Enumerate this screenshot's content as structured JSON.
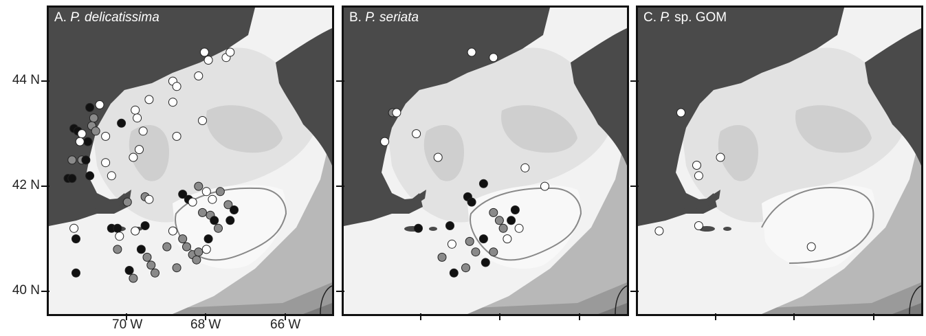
{
  "panels": [
    {
      "id": "A",
      "title_prefix": "A.",
      "title_italic": "P. delicatissima",
      "title_suffix": "",
      "stations": [
        {
          "lon": -70.05,
          "lat": 43.55,
          "type": "black"
        },
        {
          "lon": -69.95,
          "lat": 43.35,
          "type": "gray"
        },
        {
          "lon": -70.0,
          "lat": 43.2,
          "type": "gray"
        },
        {
          "lon": -69.9,
          "lat": 43.1,
          "type": "gray"
        },
        {
          "lon": -70.1,
          "lat": 42.9,
          "type": "black"
        },
        {
          "lon": -70.45,
          "lat": 43.15,
          "type": "black"
        },
        {
          "lon": -70.35,
          "lat": 43.1,
          "type": "black"
        },
        {
          "lon": -70.25,
          "lat": 43.05,
          "type": "white"
        },
        {
          "lon": -70.3,
          "lat": 42.9,
          "type": "white"
        },
        {
          "lon": -70.5,
          "lat": 42.55,
          "type": "gray"
        },
        {
          "lon": -70.25,
          "lat": 42.55,
          "type": "gray"
        },
        {
          "lon": -70.15,
          "lat": 42.55,
          "type": "black"
        },
        {
          "lon": -70.6,
          "lat": 42.2,
          "type": "black"
        },
        {
          "lon": -70.5,
          "lat": 42.2,
          "type": "black"
        },
        {
          "lon": -70.05,
          "lat": 42.25,
          "type": "black"
        },
        {
          "lon": -69.5,
          "lat": 42.25,
          "type": "white"
        },
        {
          "lon": -69.65,
          "lat": 42.5,
          "type": "white"
        },
        {
          "lon": -69.8,
          "lat": 43.6,
          "type": "white"
        },
        {
          "lon": -69.65,
          "lat": 43.0,
          "type": "white"
        },
        {
          "lon": -69.25,
          "lat": 43.25,
          "type": "black"
        },
        {
          "lon": -68.9,
          "lat": 43.5,
          "type": "white"
        },
        {
          "lon": -68.85,
          "lat": 43.35,
          "type": "white"
        },
        {
          "lon": -68.55,
          "lat": 43.7,
          "type": "white"
        },
        {
          "lon": -68.7,
          "lat": 43.1,
          "type": "white"
        },
        {
          "lon": -68.8,
          "lat": 42.75,
          "type": "white"
        },
        {
          "lon": -68.95,
          "lat": 42.6,
          "type": "white"
        },
        {
          "lon": -67.95,
          "lat": 44.05,
          "type": "white"
        },
        {
          "lon": -67.85,
          "lat": 43.95,
          "type": "white"
        },
        {
          "lon": -67.95,
          "lat": 43.65,
          "type": "white"
        },
        {
          "lon": -67.85,
          "lat": 43.0,
          "type": "white"
        },
        {
          "lon": -67.3,
          "lat": 44.15,
          "type": "white"
        },
        {
          "lon": -67.2,
          "lat": 43.3,
          "type": "white"
        },
        {
          "lon": -67.15,
          "lat": 44.6,
          "type": "white"
        },
        {
          "lon": -67.05,
          "lat": 44.45,
          "type": "white"
        },
        {
          "lon": -66.6,
          "lat": 44.5,
          "type": "white"
        },
        {
          "lon": -66.5,
          "lat": 44.6,
          "type": "white"
        },
        {
          "lon": -69.1,
          "lat": 41.75,
          "type": "gray"
        },
        {
          "lon": -68.65,
          "lat": 41.85,
          "type": "gray"
        },
        {
          "lon": -68.55,
          "lat": 41.8,
          "type": "white"
        },
        {
          "lon": -68.65,
          "lat": 41.3,
          "type": "black"
        },
        {
          "lon": -68.9,
          "lat": 41.2,
          "type": "white"
        },
        {
          "lon": -69.5,
          "lat": 41.25,
          "type": "black"
        },
        {
          "lon": -69.35,
          "lat": 41.25,
          "type": "black"
        },
        {
          "lon": -69.3,
          "lat": 41.1,
          "type": "white"
        },
        {
          "lon": -69.35,
          "lat": 40.85,
          "type": "gray"
        },
        {
          "lon": -70.45,
          "lat": 41.25,
          "type": "white"
        },
        {
          "lon": -70.4,
          "lat": 41.05,
          "type": "black"
        },
        {
          "lon": -70.4,
          "lat": 40.4,
          "type": "black"
        },
        {
          "lon": -69.05,
          "lat": 40.45,
          "type": "black"
        },
        {
          "lon": -68.95,
          "lat": 40.3,
          "type": "gray"
        },
        {
          "lon": -68.75,
          "lat": 40.85,
          "type": "black"
        },
        {
          "lon": -68.6,
          "lat": 40.7,
          "type": "gray"
        },
        {
          "lon": -68.5,
          "lat": 40.55,
          "type": "gray"
        },
        {
          "lon": -68.4,
          "lat": 40.4,
          "type": "gray"
        },
        {
          "lon": -68.1,
          "lat": 40.9,
          "type": "gray"
        },
        {
          "lon": -67.95,
          "lat": 41.2,
          "type": "white"
        },
        {
          "lon": -67.7,
          "lat": 41.05,
          "type": "gray"
        },
        {
          "lon": -67.6,
          "lat": 40.9,
          "type": "gray"
        },
        {
          "lon": -67.45,
          "lat": 40.75,
          "type": "gray"
        },
        {
          "lon": -67.35,
          "lat": 40.65,
          "type": "gray"
        },
        {
          "lon": -67.85,
          "lat": 40.5,
          "type": "gray"
        },
        {
          "lon": -67.55,
          "lat": 41.8,
          "type": "black"
        },
        {
          "lon": -67.7,
          "lat": 41.9,
          "type": "black"
        },
        {
          "lon": -67.45,
          "lat": 41.75,
          "type": "white"
        },
        {
          "lon": -67.3,
          "lat": 42.05,
          "type": "gray"
        },
        {
          "lon": -67.1,
          "lat": 41.95,
          "type": "white"
        },
        {
          "lon": -66.95,
          "lat": 41.8,
          "type": "white"
        },
        {
          "lon": -66.75,
          "lat": 41.95,
          "type": "gray"
        },
        {
          "lon": -66.55,
          "lat": 41.7,
          "type": "gray"
        },
        {
          "lon": -66.4,
          "lat": 41.6,
          "type": "black"
        },
        {
          "lon": -66.5,
          "lat": 41.4,
          "type": "black"
        },
        {
          "lon": -67.2,
          "lat": 41.55,
          "type": "gray"
        },
        {
          "lon": -67.0,
          "lat": 41.5,
          "type": "gray"
        },
        {
          "lon": -66.9,
          "lat": 41.4,
          "type": "black"
        },
        {
          "lon": -66.8,
          "lat": 41.25,
          "type": "gray"
        },
        {
          "lon": -67.05,
          "lat": 41.05,
          "type": "black"
        },
        {
          "lon": -67.1,
          "lat": 40.85,
          "type": "white"
        },
        {
          "lon": -67.3,
          "lat": 40.8,
          "type": "gray"
        }
      ]
    },
    {
      "id": "B",
      "title_prefix": "B.",
      "title_italic": "P. seriata",
      "title_suffix": "",
      "stations": [
        {
          "lon": -69.85,
          "lat": 43.45,
          "type": "gray"
        },
        {
          "lon": -69.75,
          "lat": 43.45,
          "type": "white"
        },
        {
          "lon": -70.05,
          "lat": 42.9,
          "type": "white"
        },
        {
          "lon": -69.25,
          "lat": 43.05,
          "type": "white"
        },
        {
          "lon": -68.7,
          "lat": 42.6,
          "type": "white"
        },
        {
          "lon": -67.85,
          "lat": 44.6,
          "type": "white"
        },
        {
          "lon": -67.3,
          "lat": 44.5,
          "type": "white"
        },
        {
          "lon": -66.5,
          "lat": 42.4,
          "type": "white"
        },
        {
          "lon": -67.55,
          "lat": 42.1,
          "type": "black"
        },
        {
          "lon": -66.0,
          "lat": 42.05,
          "type": "white"
        },
        {
          "lon": -69.2,
          "lat": 41.25,
          "type": "black"
        },
        {
          "lon": -68.4,
          "lat": 41.3,
          "type": "black"
        },
        {
          "lon": -67.95,
          "lat": 41.85,
          "type": "black"
        },
        {
          "lon": -67.85,
          "lat": 41.75,
          "type": "black"
        },
        {
          "lon": -67.3,
          "lat": 41.55,
          "type": "gray"
        },
        {
          "lon": -67.15,
          "lat": 41.4,
          "type": "gray"
        },
        {
          "lon": -67.05,
          "lat": 41.25,
          "type": "gray"
        },
        {
          "lon": -66.85,
          "lat": 41.4,
          "type": "black"
        },
        {
          "lon": -66.75,
          "lat": 41.6,
          "type": "black"
        },
        {
          "lon": -66.65,
          "lat": 41.25,
          "type": "white"
        },
        {
          "lon": -66.95,
          "lat": 41.05,
          "type": "white"
        },
        {
          "lon": -67.55,
          "lat": 41.05,
          "type": "black"
        },
        {
          "lon": -67.9,
          "lat": 41.0,
          "type": "gray"
        },
        {
          "lon": -67.75,
          "lat": 40.8,
          "type": "gray"
        },
        {
          "lon": -67.5,
          "lat": 40.6,
          "type": "black"
        },
        {
          "lon": -67.3,
          "lat": 40.8,
          "type": "gray"
        },
        {
          "lon": -68.3,
          "lat": 40.4,
          "type": "black"
        },
        {
          "lon": -68.0,
          "lat": 40.5,
          "type": "gray"
        },
        {
          "lon": -68.6,
          "lat": 40.7,
          "type": "gray"
        },
        {
          "lon": -68.35,
          "lat": 40.95,
          "type": "white"
        }
      ]
    },
    {
      "id": "C",
      "title_prefix": "C.",
      "title_italic": "P.",
      "title_suffix": "sp. GOM",
      "stations": [
        {
          "lon": -70.0,
          "lat": 43.45,
          "type": "white"
        },
        {
          "lon": -69.6,
          "lat": 42.45,
          "type": "white"
        },
        {
          "lon": -69.55,
          "lat": 42.25,
          "type": "white"
        },
        {
          "lon": -69.0,
          "lat": 42.6,
          "type": "white"
        },
        {
          "lon": -70.55,
          "lat": 41.2,
          "type": "white"
        },
        {
          "lon": -69.55,
          "lat": 41.3,
          "type": "white"
        },
        {
          "lon": -66.7,
          "lat": 40.9,
          "type": "white"
        }
      ]
    }
  ],
  "axes": {
    "y_labels": [
      "44 N",
      "42 N",
      "40 N"
    ],
    "x_labels": [
      "70 W",
      "68 W",
      "66 W"
    ]
  },
  "colors": {
    "land": "#4a4a4a",
    "shelf_light": "#f2f2f2",
    "shelf_mid": "#e2e2e2",
    "basin_deep": "#cfcfcf",
    "slope1": "#b8b8b8",
    "slope2": "#9a9a9a",
    "slope3": "#7a7a7a",
    "slope4": "#5e5e5e",
    "marker_black": "#111111",
    "marker_gray": "#8a8a8a",
    "marker_white": "#ffffff",
    "contour": "#888888"
  }
}
